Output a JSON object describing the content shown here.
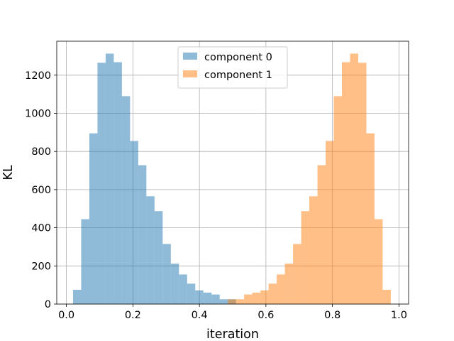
{
  "chart_data": {
    "type": "bar",
    "subtype": "histogram",
    "xlabel": "iteration",
    "ylabel": "KL",
    "xlim": [
      -0.029,
      1.029
    ],
    "ylim": [
      0,
      1378
    ],
    "xticks": [
      0.0,
      0.2,
      0.4,
      0.6,
      0.8,
      1.0
    ],
    "xtick_labels": [
      "0.0",
      "0.2",
      "0.4",
      "0.6",
      "0.8",
      "1.0"
    ],
    "yticks": [
      0,
      200,
      400,
      600,
      800,
      1000,
      1200
    ],
    "ytick_labels": [
      "0",
      "200",
      "400",
      "600",
      "800",
      "1000",
      "1200"
    ],
    "grid": true,
    "legend_position": "upper-center",
    "bin_width": 0.0245,
    "series": [
      {
        "name": "component 0",
        "color": "#1f77b4",
        "opacity": 0.5,
        "bin_starts": [
          0.02,
          0.0445,
          0.069,
          0.0935,
          0.118,
          0.1425,
          0.167,
          0.1915,
          0.216,
          0.2405,
          0.265,
          0.2895,
          0.314,
          0.3385,
          0.363,
          0.3875,
          0.412,
          0.4365,
          0.461,
          0.4855
        ],
        "values": [
          75,
          445,
          895,
          1265,
          1313,
          1268,
          1090,
          855,
          728,
          565,
          487,
          315,
          212,
          155,
          107,
          72,
          60,
          50,
          25,
          25
        ]
      },
      {
        "name": "component 1",
        "color": "#ff7f0e",
        "opacity": 0.5,
        "bin_starts": [
          0.4855,
          0.51,
          0.5345,
          0.559,
          0.5835,
          0.608,
          0.6325,
          0.657,
          0.6815,
          0.706,
          0.7305,
          0.755,
          0.7795,
          0.804,
          0.8285,
          0.853,
          0.8775,
          0.902,
          0.9265,
          0.951
        ],
        "values": [
          25,
          25,
          50,
          60,
          72,
          107,
          155,
          212,
          315,
          487,
          565,
          728,
          855,
          1090,
          1268,
          1313,
          1265,
          895,
          445,
          75
        ]
      }
    ]
  }
}
